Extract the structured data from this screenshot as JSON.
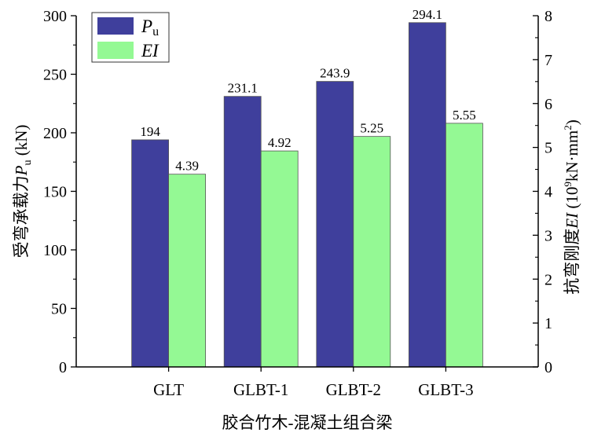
{
  "chart_data": {
    "type": "bar",
    "categories": [
      "GLT",
      "GLBT-1",
      "GLBT-2",
      "GLBT-3"
    ],
    "series": [
      {
        "name": "P",
        "name_sub": "u",
        "axis": "left",
        "color": "#3f3f9c",
        "values": [
          194,
          231.1,
          243.9,
          294.1
        ],
        "labels": [
          "194",
          "231.1",
          "243.9",
          "294.1"
        ]
      },
      {
        "name": "EI",
        "name_sub": "",
        "axis": "right",
        "color": "#94f994",
        "values": [
          4.39,
          4.92,
          5.25,
          5.55
        ],
        "labels": [
          "4.39",
          "4.92",
          "5.25",
          "5.55"
        ]
      }
    ],
    "xlabel": "胶合竹木-混凝土组合梁",
    "ylabel": {
      "prefix": "受弯承载力",
      "italic": "P",
      "sub": "u",
      "suffix": " (kN)"
    },
    "y2label": {
      "prefix": "抗弯刚度",
      "italic": "EI",
      "suffix": " (10",
      "sup": "9",
      "suffix2": "kN·mm",
      "sup2": "2",
      "end": ")"
    },
    "ylim": [
      0,
      300
    ],
    "yticks": [
      0,
      50,
      100,
      150,
      200,
      250,
      300
    ],
    "y2lim": [
      0,
      8
    ],
    "y2ticks": [
      0,
      1,
      2,
      3,
      4,
      5,
      6,
      7,
      8
    ],
    "grid": false,
    "legend": "top-left"
  }
}
